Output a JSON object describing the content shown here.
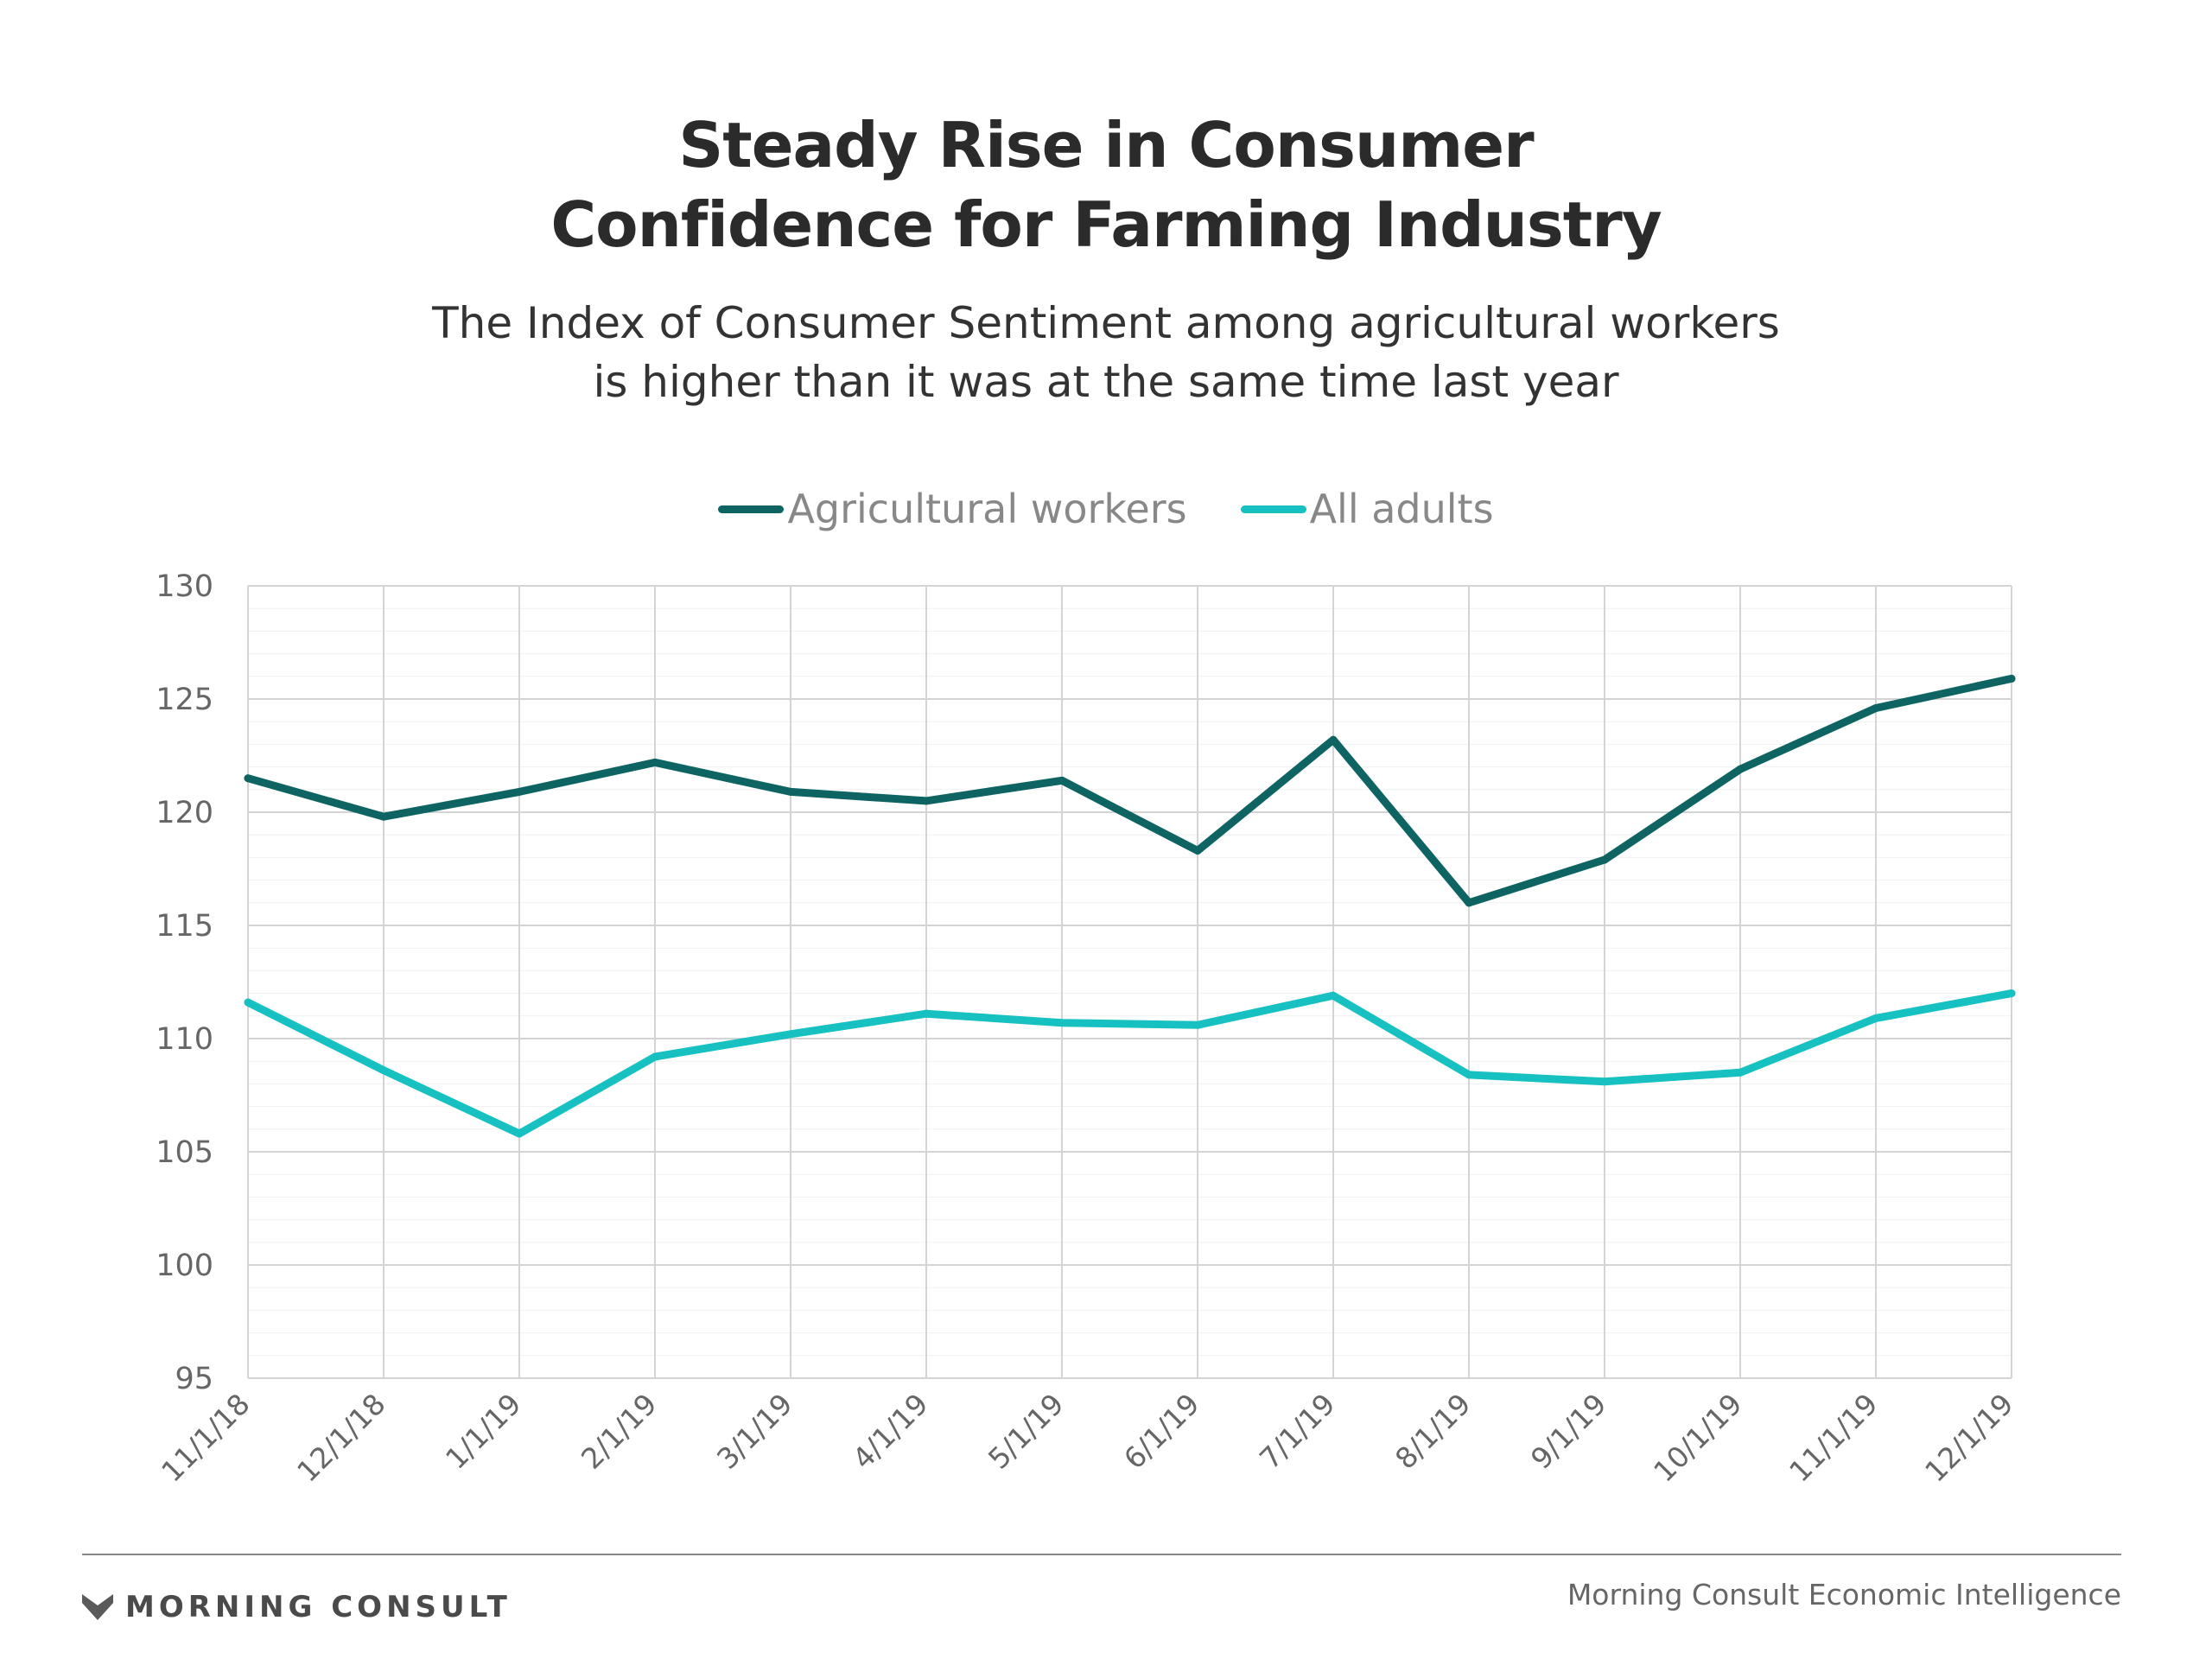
{
  "title_line1": "Steady Rise in Consumer",
  "title_line2": "Confidence for Farming Industry",
  "subtitle_line1": "The Index of Consumer Sentiment among agricultural workers",
  "subtitle_line2": "is higher than it was at the same time last year",
  "footer": {
    "brand": "MORNING CONSULT",
    "source": "Morning Consult Economic Intelligence"
  },
  "colors": {
    "agricultural": "#0d6462",
    "all_adults": "#18c1c1",
    "grid": "#d4d4d4"
  },
  "chart_data": {
    "type": "line",
    "x": [
      "11/1/18",
      "12/1/18",
      "1/1/19",
      "2/1/19",
      "3/1/19",
      "4/1/19",
      "5/1/19",
      "6/1/19",
      "7/1/19",
      "8/1/19",
      "9/1/19",
      "10/1/19",
      "11/1/19",
      "12/1/19"
    ],
    "series": [
      {
        "name": "Agricultural workers",
        "values": [
          121.5,
          119.8,
          120.9,
          122.2,
          120.9,
          120.5,
          121.4,
          118.3,
          123.2,
          116.0,
          117.9,
          121.9,
          124.6,
          125.9
        ]
      },
      {
        "name": "All adults",
        "values": [
          111.6,
          108.6,
          105.8,
          109.2,
          110.2,
          111.1,
          110.7,
          110.6,
          111.9,
          108.4,
          108.1,
          108.5,
          110.9,
          112.0
        ]
      }
    ],
    "ylim": [
      95,
      130
    ],
    "yticks": [
      95,
      100,
      105,
      110,
      115,
      120,
      125,
      130
    ],
    "grid": true,
    "legend_position": "top-center"
  }
}
